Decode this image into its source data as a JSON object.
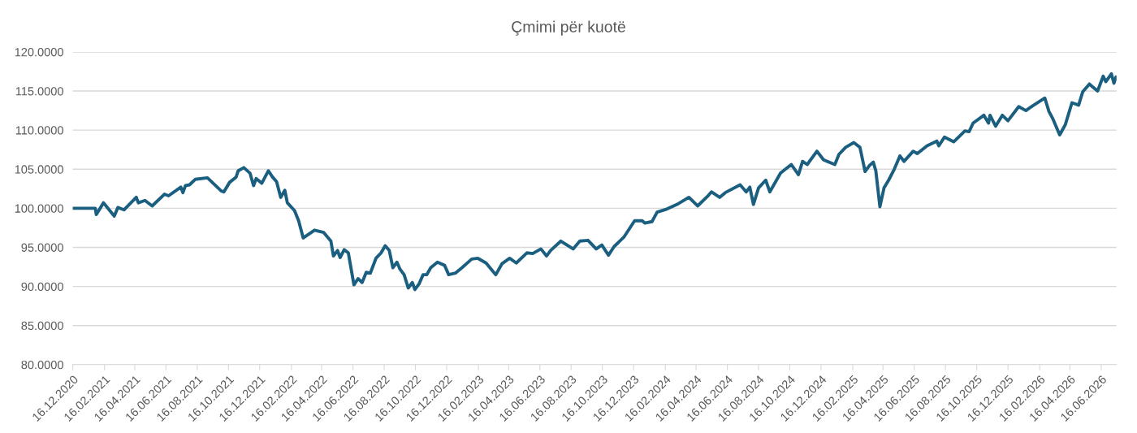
{
  "chart_data": {
    "type": "line",
    "title": "Çmimi për kuotë",
    "x": [
      "2020-12-16",
      "2021-01-20",
      "2021-01-29",
      "2021-01-31",
      "2021-02-14",
      "2021-03-07",
      "2021-03-14",
      "2021-03-26",
      "2021-04-19",
      "2021-04-23",
      "2021-05-06",
      "2021-05-20",
      "2021-06-13",
      "2021-06-21",
      "2021-07-15",
      "2021-07-19",
      "2021-07-24",
      "2021-08-01",
      "2021-08-12",
      "2021-09-05",
      "2021-10-02",
      "2021-10-07",
      "2021-10-18",
      "2021-10-31",
      "2021-11-04",
      "2021-11-15",
      "2021-11-27",
      "2021-12-04",
      "2021-12-09",
      "2021-12-20",
      "2022-01-02",
      "2022-01-10",
      "2022-01-18",
      "2022-01-26",
      "2022-02-03",
      "2022-02-08",
      "2022-02-22",
      "2022-03-02",
      "2022-03-11",
      "2022-04-02",
      "2022-04-20",
      "2022-05-04",
      "2022-05-09",
      "2022-05-17",
      "2022-05-22",
      "2022-05-30",
      "2022-06-07",
      "2022-06-18",
      "2022-06-26",
      "2022-07-04",
      "2022-07-12",
      "2022-07-20",
      "2022-07-31",
      "2022-08-10",
      "2022-08-18",
      "2022-08-26",
      "2022-09-02",
      "2022-09-10",
      "2022-09-16",
      "2022-09-24",
      "2022-10-02",
      "2022-10-10",
      "2022-10-15",
      "2022-10-23",
      "2022-10-31",
      "2022-11-07",
      "2022-11-15",
      "2022-11-28",
      "2022-12-12",
      "2022-12-20",
      "2023-01-02",
      "2023-01-15",
      "2023-02-03",
      "2023-02-15",
      "2023-03-03",
      "2023-03-18",
      "2023-03-22",
      "2023-04-03",
      "2023-04-18",
      "2023-05-01",
      "2023-05-22",
      "2023-06-02",
      "2023-06-18",
      "2023-06-29",
      "2023-07-07",
      "2023-07-27",
      "2023-08-20",
      "2023-09-02",
      "2023-09-18",
      "2023-10-04",
      "2023-10-15",
      "2023-10-28",
      "2023-11-08",
      "2023-11-27",
      "2023-12-18",
      "2024-01-02",
      "2024-01-07",
      "2024-01-21",
      "2024-01-31",
      "2024-02-19",
      "2024-03-10",
      "2024-04-02",
      "2024-04-19",
      "2024-05-08",
      "2024-05-16",
      "2024-06-01",
      "2024-06-12",
      "2024-07-11",
      "2024-07-23",
      "2024-07-30",
      "2024-08-06",
      "2024-08-16",
      "2024-08-30",
      "2024-09-07",
      "2024-09-28",
      "2024-10-19",
      "2024-11-02",
      "2024-11-10",
      "2024-11-19",
      "2024-12-08",
      "2024-12-21",
      "2025-01-12",
      "2025-01-20",
      "2025-02-02",
      "2025-02-18",
      "2025-03-02",
      "2025-03-12",
      "2025-03-21",
      "2025-03-28",
      "2025-04-02",
      "2025-04-10",
      "2025-04-18",
      "2025-04-27",
      "2025-05-08",
      "2025-05-19",
      "2025-05-27",
      "2025-06-14",
      "2025-06-22",
      "2025-07-11",
      "2025-07-30",
      "2025-08-03",
      "2025-08-14",
      "2025-09-01",
      "2025-09-23",
      "2025-10-01",
      "2025-10-09",
      "2025-10-30",
      "2025-11-08",
      "2025-11-11",
      "2025-11-22",
      "2025-12-05",
      "2025-12-16",
      "2026-01-06",
      "2026-01-20",
      "2026-02-02",
      "2026-02-26",
      "2026-03-06",
      "2026-03-14",
      "2026-03-27",
      "2026-04-07",
      "2026-04-20",
      "2026-05-03",
      "2026-05-11",
      "2026-05-24",
      "2026-05-29",
      "2026-06-09",
      "2026-06-20",
      "2026-06-25",
      "2026-07-06",
      "2026-07-11",
      "2026-07-15"
    ],
    "series": [
      {
        "color": "#1a5e80",
        "values": [
          100.0,
          100.0,
          100.0,
          99.2,
          100.7,
          99.0,
          100.1,
          99.8,
          101.4,
          100.7,
          101.0,
          100.3,
          101.8,
          101.6,
          102.7,
          102.0,
          102.9,
          103.0,
          103.7,
          103.9,
          102.2,
          102.1,
          103.3,
          104.0,
          104.8,
          105.2,
          104.5,
          102.9,
          103.8,
          103.2,
          104.8,
          104.0,
          103.4,
          101.4,
          102.3,
          100.7,
          99.7,
          98.4,
          96.2,
          97.2,
          96.9,
          95.8,
          93.9,
          94.6,
          93.7,
          94.7,
          94.3,
          90.2,
          91.0,
          90.5,
          91.8,
          91.7,
          93.6,
          94.3,
          95.2,
          94.6,
          92.4,
          93.1,
          92.2,
          91.5,
          89.8,
          90.5,
          89.6,
          90.3,
          91.5,
          91.5,
          92.4,
          93.1,
          92.7,
          91.5,
          91.7,
          92.4,
          93.5,
          93.6,
          93.0,
          91.8,
          91.5,
          92.9,
          93.6,
          93.0,
          94.3,
          94.2,
          94.8,
          93.9,
          94.6,
          95.8,
          94.8,
          95.8,
          95.9,
          94.8,
          95.3,
          94.0,
          95.1,
          96.3,
          98.4,
          98.4,
          98.1,
          98.3,
          99.5,
          99.9,
          100.5,
          101.4,
          100.3,
          101.5,
          102.1,
          101.4,
          102.0,
          103.0,
          102.1,
          102.7,
          100.5,
          102.6,
          103.6,
          102.1,
          104.5,
          105.6,
          104.3,
          106.0,
          105.6,
          107.3,
          106.2,
          105.6,
          106.9,
          107.8,
          108.4,
          107.8,
          104.7,
          105.5,
          105.9,
          104.8,
          100.2,
          102.6,
          103.6,
          105.0,
          106.7,
          106.0,
          107.3,
          107.0,
          108.0,
          108.6,
          108.0,
          109.1,
          108.5,
          109.9,
          109.8,
          110.9,
          111.9,
          110.9,
          111.9,
          110.5,
          111.9,
          111.2,
          113.0,
          112.5,
          113.1,
          114.1,
          112.4,
          111.4,
          109.4,
          110.7,
          113.5,
          113.2,
          114.9,
          115.9,
          115.6,
          115.0,
          116.9,
          116.2,
          117.2,
          116.0,
          116.8
        ]
      }
    ],
    "xlim": [
      "2020-12-16",
      "2026-07-16"
    ],
    "xticks": [
      {
        "value": "2020-12-16",
        "label": "16.12.2020"
      },
      {
        "value": "2021-02-16",
        "label": "16.02.2021"
      },
      {
        "value": "2021-04-16",
        "label": "16.04.2021"
      },
      {
        "value": "2021-06-16",
        "label": "16.06.2021"
      },
      {
        "value": "2021-08-16",
        "label": "16.08.2021"
      },
      {
        "value": "2021-10-16",
        "label": "16.10.2021"
      },
      {
        "value": "2021-12-16",
        "label": "16.12.2021"
      },
      {
        "value": "2022-02-16",
        "label": "16.02.2022"
      },
      {
        "value": "2022-04-16",
        "label": "16.04.2022"
      },
      {
        "value": "2022-06-16",
        "label": "16.06.2022"
      },
      {
        "value": "2022-08-16",
        "label": "16.08.2022"
      },
      {
        "value": "2022-10-16",
        "label": "16.10.2022"
      },
      {
        "value": "2022-12-16",
        "label": "16.12.2022"
      },
      {
        "value": "2023-02-16",
        "label": "16.02.2023"
      },
      {
        "value": "2023-04-16",
        "label": "16.04.2023"
      },
      {
        "value": "2023-06-16",
        "label": "16.06.2023"
      },
      {
        "value": "2023-08-16",
        "label": "16.08.2023"
      },
      {
        "value": "2023-10-16",
        "label": "16.10.2023"
      },
      {
        "value": "2023-12-16",
        "label": "16.12.2023"
      },
      {
        "value": "2024-02-16",
        "label": "16.02.2024"
      },
      {
        "value": "2024-04-16",
        "label": "16.04.2024"
      },
      {
        "value": "2024-06-16",
        "label": "16.06.2024"
      },
      {
        "value": "2024-08-16",
        "label": "16.08.2024"
      },
      {
        "value": "2024-10-16",
        "label": "16.10.2024"
      },
      {
        "value": "2024-12-16",
        "label": "16.12.2024"
      },
      {
        "value": "2025-02-16",
        "label": "16.02.2025"
      },
      {
        "value": "2025-04-16",
        "label": "16.04.2025"
      },
      {
        "value": "2025-06-16",
        "label": "16.06.2025"
      },
      {
        "value": "2025-08-16",
        "label": "16.08.2025"
      },
      {
        "value": "2025-10-16",
        "label": "16.10.2025"
      },
      {
        "value": "2025-12-16",
        "label": "16.12.2025"
      },
      {
        "value": "2026-02-16",
        "label": "16.02.2026"
      },
      {
        "value": "2026-04-16",
        "label": "16.04.2026"
      },
      {
        "value": "2026-06-16",
        "label": "16.06.2026"
      }
    ],
    "ylim": [
      80,
      120
    ],
    "yticks": [
      {
        "value": 80,
        "label": "80.0000"
      },
      {
        "value": 85,
        "label": "85.0000"
      },
      {
        "value": 90,
        "label": "90.0000"
      },
      {
        "value": 95,
        "label": "95.0000"
      },
      {
        "value": 100,
        "label": "100.0000"
      },
      {
        "value": 105,
        "label": "105.0000"
      },
      {
        "value": 110,
        "label": "110.0000"
      },
      {
        "value": 115,
        "label": "115.0000"
      },
      {
        "value": 120,
        "label": "120.0000"
      }
    ],
    "grid": "y",
    "line_style": "solid"
  }
}
